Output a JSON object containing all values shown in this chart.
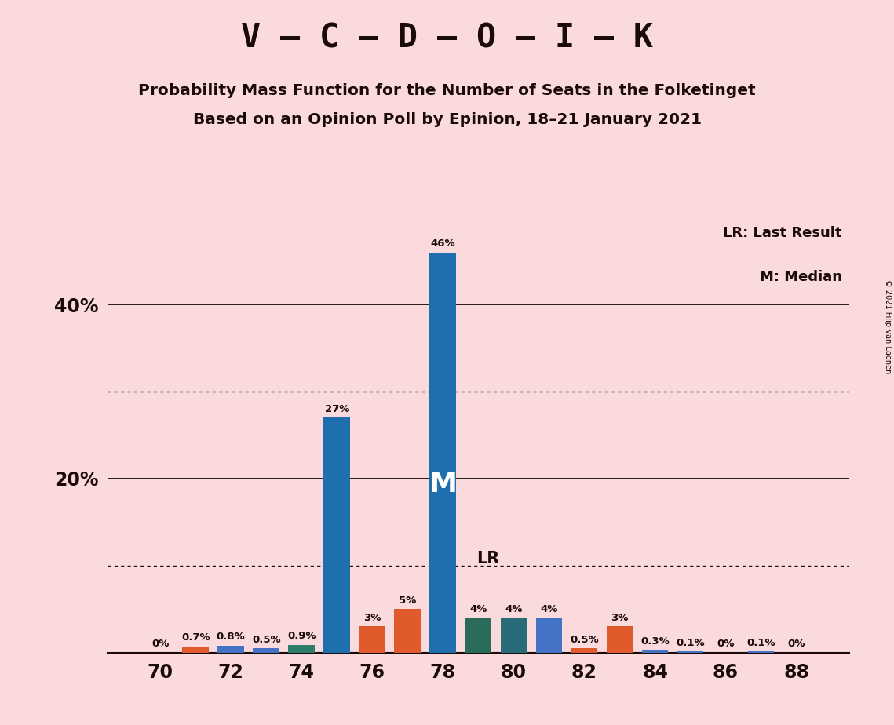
{
  "title1": "V – C – D – O – I – K",
  "title2": "Probability Mass Function for the Number of Seats in the Folketinget",
  "title3": "Based on an Opinion Poll by Epinion, 18–21 January 2021",
  "copyright": "© 2021 Filip van Laenen",
  "seats": [
    70,
    71,
    72,
    73,
    74,
    75,
    76,
    77,
    78,
    79,
    80,
    81,
    82,
    83,
    84,
    85,
    86,
    87,
    88
  ],
  "values": [
    0.0,
    0.7,
    0.8,
    0.5,
    0.9,
    27.0,
    3.0,
    5.0,
    46.0,
    4.0,
    4.0,
    4.0,
    0.5,
    3.0,
    0.3,
    0.1,
    0.0,
    0.1,
    0.0
  ],
  "labels": [
    "0%",
    "0.7%",
    "0.8%",
    "0.5%",
    "0.9%",
    "27%",
    "3%",
    "5%",
    "46%",
    "4%",
    "4%",
    "4%",
    "0.5%",
    "3%",
    "0.3%",
    "0.1%",
    "0%",
    "0.1%",
    "0%"
  ],
  "colors": [
    "#E05A2B",
    "#E05A2B",
    "#4472C4",
    "#4472C4",
    "#2E7D6A",
    "#1F6FAE",
    "#E05A2B",
    "#E05A2B",
    "#1F6FAE",
    "#2A6B5A",
    "#2A6B7A",
    "#4472C4",
    "#E05A2B",
    "#E05A2B",
    "#4472C4",
    "#4472C4",
    "#E05A2B",
    "#4472C4",
    "#E05A2B"
  ],
  "median_seat": 78,
  "lr_seat": 79,
  "background_color": "#FADADD",
  "dotted_lines": [
    10,
    30
  ],
  "solid_lines": [
    20,
    40
  ],
  "xlim": [
    68.5,
    89.5
  ],
  "ylim": [
    0,
    50
  ],
  "ytick_positions": [
    20,
    40
  ],
  "ytick_labels": [
    "20%",
    "40%"
  ]
}
